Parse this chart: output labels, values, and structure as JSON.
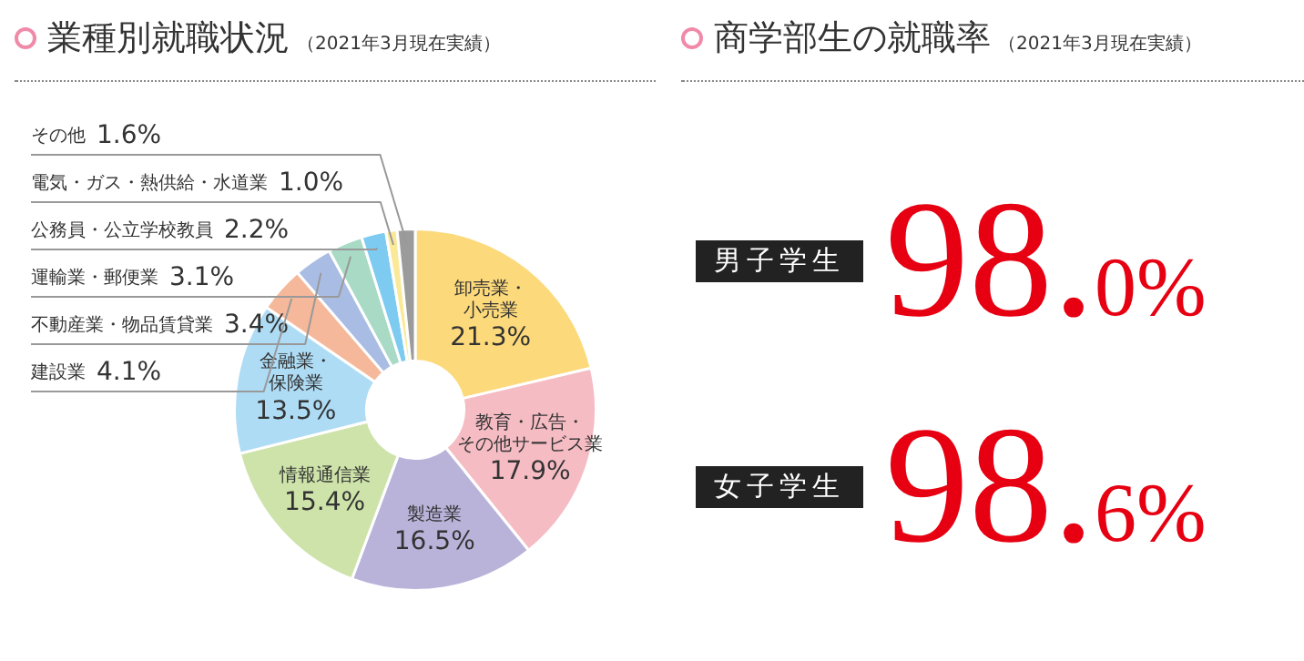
{
  "chart_data": [
    {
      "type": "donut",
      "title": "業種別就職状況",
      "subtitle": "（2021年3月現在実績）",
      "categories": [
        "卸売業・小売業",
        "教育・広告・その他サービス業",
        "製造業",
        "情報通信業",
        "金融業・保険業",
        "建設業",
        "不動産業・物品賃貸業",
        "運輸業・郵便業",
        "公務員・公立学校教員",
        "電気・ガス・熱供給・水道業",
        "その他"
      ],
      "values": [
        21.3,
        17.9,
        16.5,
        15.4,
        13.5,
        4.1,
        3.4,
        3.1,
        2.2,
        1.0,
        1.6
      ],
      "value_labels": [
        "21.3%",
        "17.9%",
        "16.5%",
        "15.4%",
        "13.5%",
        "4.1%",
        "3.4%",
        "3.1%",
        "2.2%",
        "1.0%",
        "1.6%"
      ],
      "colors": [
        "#fcd97a",
        "#f5bcc4",
        "#b9b3da",
        "#cde3a9",
        "#aedcf5",
        "#f6b89a",
        "#a9bde4",
        "#a8dac6",
        "#7ecbf1",
        "#fbe99a",
        "#9b9b9b"
      ]
    },
    {
      "type": "other",
      "title": "商学部生の就職率",
      "subtitle": "（2021年3月現在実績）",
      "categories": [
        "男子学生",
        "女子学生"
      ],
      "value_labels": [
        "98.0%",
        "98.6%"
      ],
      "color": "#e60012"
    }
  ]
}
